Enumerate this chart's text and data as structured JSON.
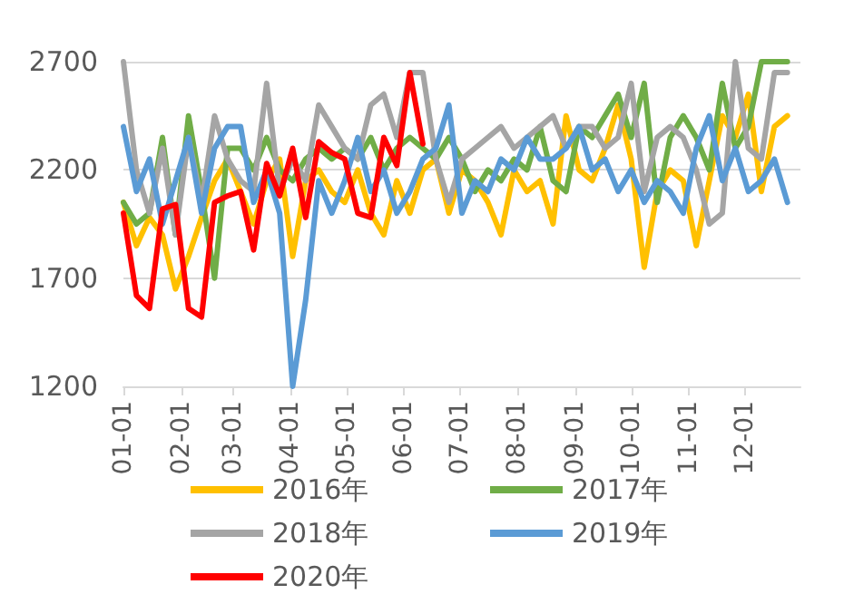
{
  "chart_data": {
    "type": "line",
    "x": [
      "--01-01",
      "--01-08",
      "--01-15",
      "--01-22",
      "--01-29",
      "--02-05",
      "--02-12",
      "--02-19",
      "--02-26",
      "--03-05",
      "--03-12",
      "--03-19",
      "--03-26",
      "--04-02",
      "--04-09",
      "--04-16",
      "--04-23",
      "--04-30",
      "--05-07",
      "--05-14",
      "--05-21",
      "--05-28",
      "--06-04",
      "--06-11",
      "--06-18",
      "--06-25",
      "--07-02",
      "--07-09",
      "--07-16",
      "--07-23",
      "--07-30",
      "--08-06",
      "--08-13",
      "--08-20",
      "--08-27",
      "--09-03",
      "--09-10",
      "--09-17",
      "--09-24",
      "--10-01",
      "--10-08",
      "--10-15",
      "--10-22",
      "--10-29",
      "--11-05",
      "--11-12",
      "--11-19",
      "--11-26",
      "--12-03",
      "--12-10",
      "--12-17",
      "--12-24"
    ],
    "series": [
      {
        "name": "2016年",
        "color": "#ffc000",
        "values": [
          2050,
          1850,
          1980,
          1900,
          1650,
          1800,
          1980,
          2150,
          2250,
          2100,
          1950,
          2150,
          2250,
          1800,
          2150,
          2200,
          2100,
          2050,
          2200,
          2000,
          1900,
          2150,
          2000,
          2200,
          2250,
          2000,
          2200,
          2150,
          2050,
          1900,
          2200,
          2100,
          2150,
          1950,
          2450,
          2200,
          2150,
          2300,
          2500,
          2250,
          1750,
          2100,
          2200,
          2150,
          1850,
          2150,
          2450,
          2350,
          2550,
          2100,
          2400,
          2450
        ]
      },
      {
        "name": "2017年",
        "color": "#70ad47",
        "values": [
          2050,
          1950,
          2000,
          2350,
          1900,
          2450,
          2100,
          1700,
          2300,
          2300,
          2200,
          2350,
          2200,
          2150,
          2250,
          2300,
          2250,
          2300,
          2250,
          2350,
          2200,
          2300,
          2350,
          2300,
          2250,
          2350,
          2250,
          2100,
          2200,
          2150,
          2250,
          2200,
          2400,
          2150,
          2100,
          2400,
          2350,
          2450,
          2550,
          2350,
          2600,
          2050,
          2350,
          2450,
          2350,
          2200,
          2600,
          2300,
          2400,
          2700,
          2700,
          2700
        ]
      },
      {
        "name": "2018年",
        "color": "#a5a5a5",
        "values": [
          2700,
          2200,
          2000,
          2300,
          1900,
          2350,
          2050,
          2450,
          2250,
          2150,
          2100,
          2600,
          2100,
          2250,
          2150,
          2500,
          2400,
          2300,
          2250,
          2500,
          2550,
          2350,
          2650,
          2650,
          2250,
          2050,
          2250,
          2300,
          2350,
          2400,
          2300,
          2350,
          2400,
          2450,
          2300,
          2400,
          2400,
          2300,
          2350,
          2600,
          2100,
          2350,
          2400,
          2350,
          2200,
          1950,
          2000,
          2700,
          2300,
          2250,
          2650,
          2650
        ]
      },
      {
        "name": "2019年",
        "color": "#5b9bd5",
        "values": [
          2400,
          2100,
          2250,
          1950,
          2150,
          2350,
          2000,
          2300,
          2400,
          2400,
          2050,
          2200,
          2000,
          1200,
          1600,
          2150,
          2000,
          2150,
          2350,
          2100,
          2200,
          2000,
          2100,
          2250,
          2300,
          2500,
          2000,
          2150,
          2100,
          2250,
          2200,
          2350,
          2250,
          2250,
          2300,
          2400,
          2200,
          2250,
          2100,
          2200,
          2050,
          2150,
          2100,
          2000,
          2300,
          2450,
          2150,
          2300,
          2100,
          2150,
          2250,
          2050
        ]
      },
      {
        "name": "2020年",
        "color": "#ff0000",
        "x": [
          "--01-01",
          "--01-08",
          "--01-15",
          "--01-22",
          "--01-29",
          "--02-05",
          "--02-12",
          "--02-19",
          "--02-26",
          "--03-05",
          "--03-12",
          "--03-19",
          "--03-26",
          "--04-02",
          "--04-09",
          "--04-16",
          "--04-23",
          "--04-30",
          "--05-07",
          "--05-14",
          "--05-21",
          "--05-28",
          "--06-04",
          "--06-11"
        ],
        "values": [
          2000,
          1620,
          1560,
          2020,
          2040,
          1560,
          1520,
          2050,
          2080,
          2100,
          1830,
          2230,
          2080,
          2300,
          1980,
          2330,
          2280,
          2250,
          2000,
          1980,
          2350,
          2220,
          2650,
          2320
        ]
      }
    ],
    "xlim": [
      "--01-01",
      "--12-31"
    ],
    "xticks": [
      {
        "value": "--01-01",
        "label": "01-01"
      },
      {
        "value": "--02-01",
        "label": "02-01"
      },
      {
        "value": "--03-01",
        "label": "03-01"
      },
      {
        "value": "--04-01",
        "label": "04-01"
      },
      {
        "value": "--05-01",
        "label": "05-01"
      },
      {
        "value": "--06-01",
        "label": "06-01"
      },
      {
        "value": "--07-01",
        "label": "07-01"
      },
      {
        "value": "--08-01",
        "label": "08-01"
      },
      {
        "value": "--09-01",
        "label": "09-01"
      },
      {
        "value": "--10-01",
        "label": "10-01"
      },
      {
        "value": "--11-01",
        "label": "11-01"
      },
      {
        "value": "--12-01",
        "label": "12-01"
      }
    ],
    "ylim": [
      1200,
      2700
    ],
    "yticks": [
      1200,
      1700,
      2200,
      2700
    ],
    "grid": "y",
    "legend": "bottom",
    "marker": "none",
    "line_style": "solid"
  }
}
